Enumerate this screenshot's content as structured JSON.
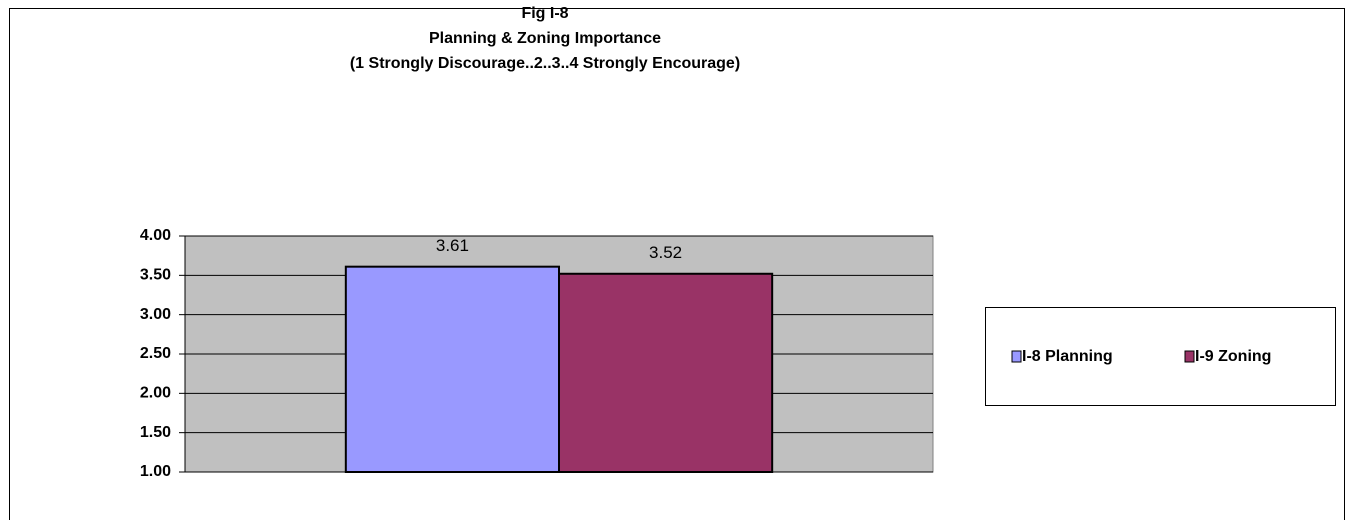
{
  "chart_data": {
    "type": "bar",
    "title": [
      "Fig I-8",
      "Planning & Zoning Importance",
      "(1 Strongly Discourage..2..3..4 Strongly Encourage)"
    ],
    "categories": [
      null
    ],
    "series": [
      {
        "name": "I-8 Planning",
        "color": "#9999ff",
        "values": [
          3.61
        ]
      },
      {
        "name": "I-9 Zoning",
        "color": "#993366",
        "values": [
          3.52
        ]
      }
    ],
    "ylim": [
      1,
      4
    ],
    "yticks": [
      {
        "value": 1,
        "label": "1.00"
      },
      {
        "value": 1.5,
        "label": "1.50"
      },
      {
        "value": 2,
        "label": "2.00"
      },
      {
        "value": 2.5,
        "label": "2.50"
      },
      {
        "value": 3,
        "label": "3.00"
      },
      {
        "value": 3.5,
        "label": "3.50"
      },
      {
        "value": 4,
        "label": "4.00"
      }
    ],
    "grid": true,
    "legend": "right"
  }
}
